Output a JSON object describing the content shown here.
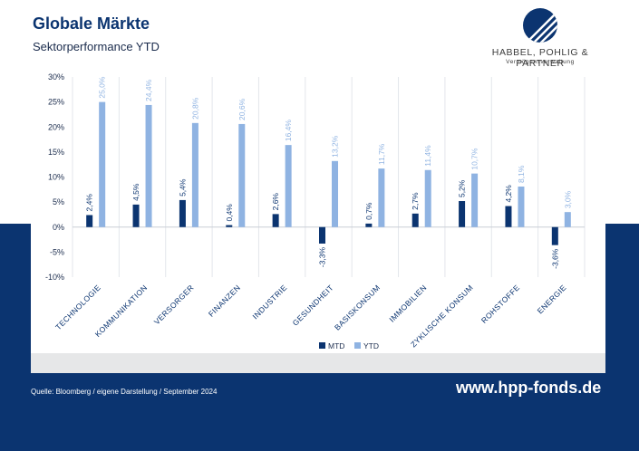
{
  "header": {
    "title": "Globale Märkte",
    "subtitle": "Sektorperformance YTD"
  },
  "logo": {
    "name": "HABBEL, POHLIG & PARTNER",
    "tagline": "Vermögensverwaltung",
    "icon": "hpp-circle-logo-icon"
  },
  "footer": {
    "source": "Quelle: Bloomberg / eigene Darstellung / September 2024",
    "url": "www.hpp-fonds.de"
  },
  "colors": {
    "navy": "#0b3470",
    "mtd": "#0b3470",
    "ytd": "#8fb3e2"
  },
  "chart_data": {
    "type": "bar",
    "categories": [
      "TECHNOLOGIE",
      "KOMMUNIKATION",
      "VERSORGER",
      "FINANZEN",
      "INDUSTRIE",
      "GESUNDHEIT",
      "BASISKONSUM",
      "IMMOBILIEN",
      "ZYKLISCHE KONSUM",
      "ROHSTOFFE",
      "ENERGIE"
    ],
    "series": [
      {
        "name": "MTD",
        "values": [
          2.4,
          4.5,
          5.4,
          0.4,
          2.6,
          -3.3,
          0.7,
          2.7,
          5.2,
          4.2,
          -3.6
        ],
        "labels": [
          "2,4%",
          "4,5%",
          "5,4%",
          "0,4%",
          "2,6%",
          "-3,3%",
          "0,7%",
          "2,7%",
          "5,2%",
          "4,2%",
          "-3,6%"
        ]
      },
      {
        "name": "YTD",
        "values": [
          25.0,
          24.4,
          20.8,
          20.6,
          16.4,
          13.2,
          11.7,
          11.4,
          10.7,
          8.1,
          3.0
        ],
        "labels": [
          "25,0%",
          "24,4%",
          "20,8%",
          "20,6%",
          "16,4%",
          "13,2%",
          "11,7%",
          "11,4%",
          "10,7%",
          "8,1%",
          "3,0%"
        ]
      }
    ],
    "ylim": [
      -10,
      30
    ],
    "yticks": [
      30,
      25,
      20,
      15,
      10,
      5,
      0,
      -5,
      -10
    ],
    "ytick_labels": [
      "30%",
      "25%",
      "20%",
      "15%",
      "10%",
      "5%",
      "0%",
      "-5%",
      "-10%"
    ],
    "legend_position": "bottom-center",
    "grid": "vertical"
  }
}
